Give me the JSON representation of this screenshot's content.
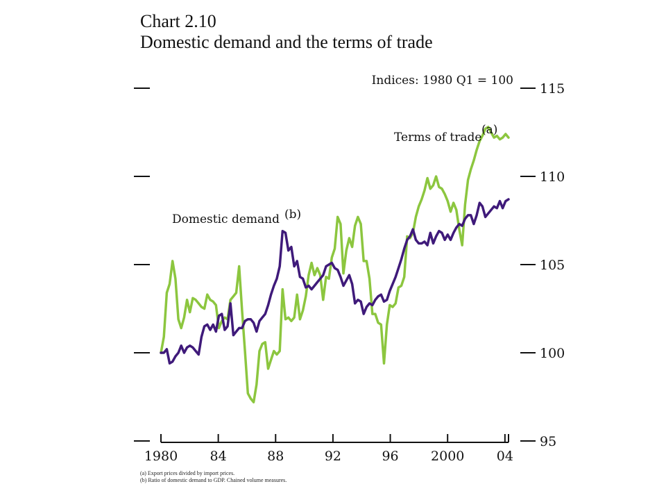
{
  "title_line1": "Chart 2.10",
  "title_line2": "Domestic demand and the terms of trade",
  "footnotes": [
    "(a)  Export prices divided by import prices.",
    "(b)  Ratio of domestic demand to GDP.  Chained volume measures."
  ],
  "chart_data": {
    "type": "line",
    "ylabel": "Indices:  1980 Q1 = 100",
    "ylim": [
      95,
      115
    ],
    "y_ticks": [
      95,
      100,
      105,
      110,
      115
    ],
    "x_start": 1980,
    "x_end": 2004.25,
    "x_tick_labels": [
      {
        "year": 1980,
        "label": "1980"
      },
      {
        "year": 1984,
        "label": "84"
      },
      {
        "year": 1988,
        "label": "88"
      },
      {
        "year": 1992,
        "label": "92"
      },
      {
        "year": 1996,
        "label": "96"
      },
      {
        "year": 2000,
        "label": "2000"
      },
      {
        "year": 2004,
        "label": "04"
      }
    ],
    "series": [
      {
        "name": "Terms of trade",
        "note": "(a)",
        "color": "#8cc63f",
        "label_position": "upper-right",
        "values": [
          100.0,
          100.9,
          103.4,
          103.9,
          105.2,
          104.2,
          101.9,
          101.4,
          102.0,
          103.0,
          102.3,
          103.1,
          103.0,
          102.8,
          102.6,
          102.5,
          103.3,
          103.0,
          102.9,
          102.7,
          101.4,
          101.8,
          102.0,
          101.9,
          103.0,
          103.2,
          103.4,
          104.9,
          102.4,
          100.1,
          97.7,
          97.4,
          97.2,
          98.2,
          100.1,
          100.5,
          100.6,
          99.1,
          99.6,
          100.1,
          99.9,
          100.1,
          103.6,
          101.9,
          102.0,
          101.8,
          102.0,
          103.3,
          101.9,
          102.4,
          103.2,
          104.4,
          105.1,
          104.4,
          104.8,
          104.4,
          103.0,
          104.3,
          104.2,
          105.4,
          105.9,
          107.7,
          107.3,
          104.5,
          105.8,
          106.5,
          106.0,
          107.2,
          107.7,
          107.3,
          105.2,
          105.2,
          104.2,
          102.2,
          102.2,
          101.7,
          101.6,
          99.4,
          101.6,
          102.7,
          102.6,
          102.8,
          103.7,
          103.8,
          104.3,
          106.6,
          106.5,
          106.8,
          107.7,
          108.3,
          108.7,
          109.2,
          109.9,
          109.3,
          109.5,
          110.0,
          109.4,
          109.3,
          109.0,
          108.6,
          108.0,
          108.5,
          108.1,
          107.0,
          106.1,
          108.4,
          109.8,
          110.4,
          110.9,
          111.5,
          112.0,
          112.3,
          112.7,
          112.8,
          112.5,
          112.2,
          112.3,
          112.1,
          112.2,
          112.4,
          112.2
        ]
      },
      {
        "name": "Domestic demand",
        "note": "(b)",
        "color": "#3f1a7a",
        "label_position": "upper-left",
        "values": [
          100.0,
          100.0,
          100.2,
          99.4,
          99.5,
          99.8,
          100.0,
          100.4,
          100.0,
          100.3,
          100.4,
          100.3,
          100.1,
          99.9,
          100.9,
          101.5,
          101.6,
          101.3,
          101.6,
          101.2,
          102.1,
          102.2,
          101.3,
          101.5,
          102.8,
          101.0,
          101.2,
          101.4,
          101.4,
          101.8,
          101.9,
          101.9,
          101.7,
          101.2,
          101.8,
          102.0,
          102.2,
          102.7,
          103.3,
          103.8,
          104.2,
          104.9,
          106.9,
          106.8,
          105.8,
          106.0,
          104.9,
          105.2,
          104.3,
          104.2,
          103.7,
          103.8,
          103.6,
          103.8,
          104.0,
          104.2,
          104.4,
          104.9,
          105.0,
          105.1,
          104.8,
          104.7,
          104.3,
          103.8,
          104.1,
          104.4,
          103.9,
          102.8,
          103.0,
          102.9,
          102.2,
          102.6,
          102.8,
          102.7,
          103.0,
          103.2,
          103.3,
          102.9,
          103.0,
          103.5,
          103.9,
          104.3,
          104.8,
          105.3,
          105.9,
          106.4,
          106.6,
          107.0,
          106.4,
          106.2,
          106.2,
          106.3,
          106.1,
          106.8,
          106.2,
          106.6,
          106.9,
          106.8,
          106.4,
          106.7,
          106.4,
          106.8,
          107.1,
          107.3,
          107.2,
          107.6,
          107.8,
          107.8,
          107.3,
          107.8,
          108.5,
          108.3,
          107.7,
          107.9,
          108.1,
          108.3,
          108.2,
          108.6,
          108.2,
          108.6,
          108.7
        ]
      }
    ]
  }
}
